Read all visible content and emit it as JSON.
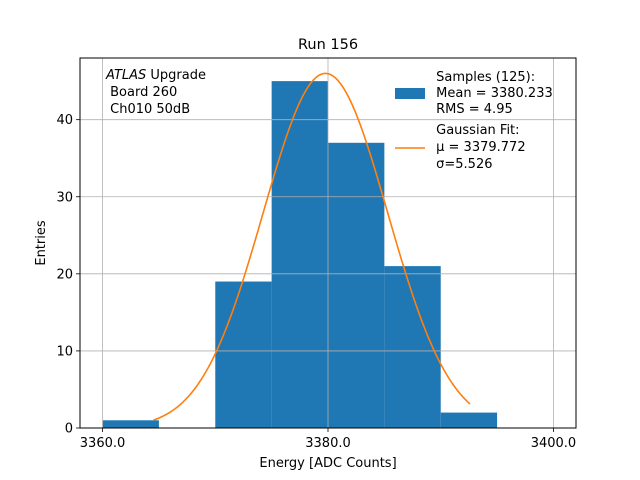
{
  "chart_data": {
    "type": "bar",
    "title": "Run 156",
    "xlabel": "Energy [ADC Counts]",
    "ylabel": "Entries",
    "xlim": [
      3358.0,
      3402.0
    ],
    "ylim": [
      0,
      48
    ],
    "grid": true,
    "x_ticks": [
      3360,
      3380,
      3400
    ],
    "x_tick_labels": [
      "3360.0",
      "3380.0",
      "3400.0"
    ],
    "y_ticks": [
      0,
      10,
      20,
      30,
      40
    ],
    "y_tick_labels": [
      "0",
      "10",
      "20",
      "30",
      "40"
    ],
    "bin_edges": [
      3360,
      3365,
      3370,
      3375,
      3380,
      3385,
      3390,
      3395
    ],
    "values": [
      1,
      0,
      19,
      45,
      37,
      21,
      2
    ],
    "fit": {
      "mu": 3379.772,
      "sigma": 5.526,
      "amplitude": 46.0,
      "x_start": 3364.5,
      "x_end": 3392.6
    },
    "annotation": [
      "ATLAS",
      " Upgrade",
      " Board 260",
      " Ch010 50dB"
    ],
    "legend": {
      "position": "upper right",
      "samples": [
        " Samples (125):",
        " Mean = 3380.233",
        " RMS = 4.95"
      ],
      "fit_lines": [
        " Gaussian Fit:",
        " μ = 3379.772",
        " σ=5.526"
      ]
    },
    "colors": {
      "bars": "#1f77b4",
      "fit": "#ff7f0e",
      "grid": "#b0b0b0"
    }
  }
}
